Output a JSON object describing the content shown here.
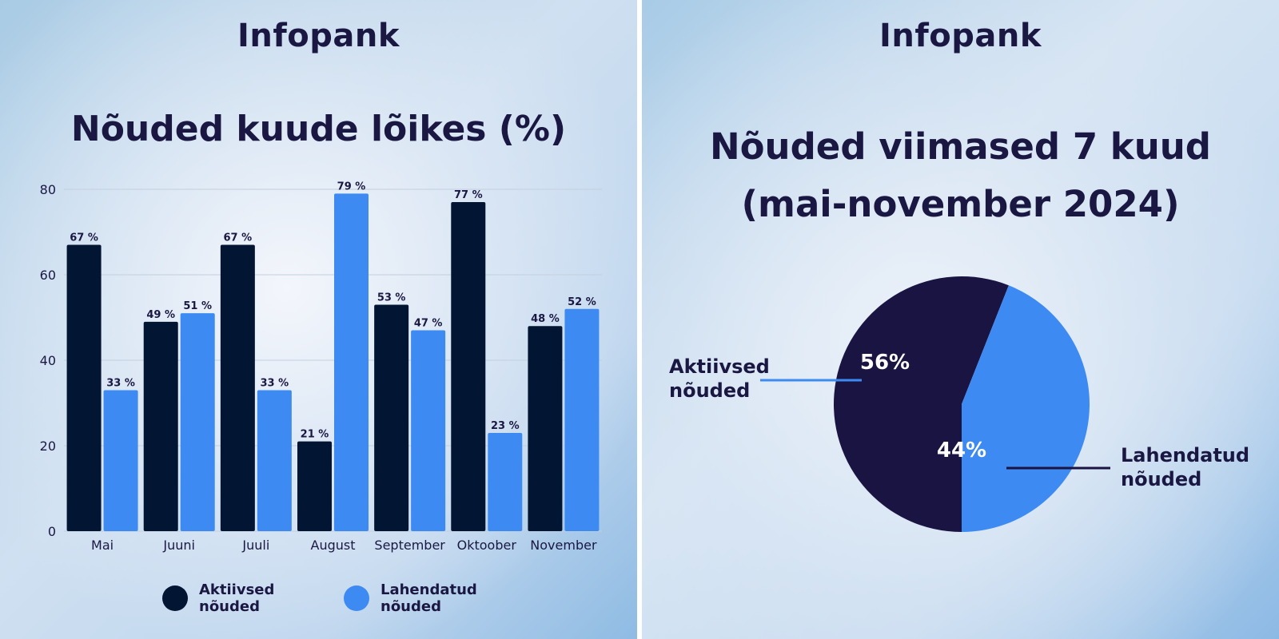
{
  "left": {
    "brand": "Infopank",
    "chart_data": {
      "type": "bar",
      "title": "Nõuded kuude lõikes (%)",
      "xlabel": "",
      "ylabel": "",
      "ylim": [
        0,
        80
      ],
      "yticks": [
        "0",
        "20",
        "40",
        "60",
        "80"
      ],
      "grid": true,
      "legend_position": "bottom",
      "categories": [
        "Mai",
        "Juuni",
        "Juuli",
        "August",
        "September",
        "Oktoober",
        "November"
      ],
      "series": [
        {
          "name": "Aktiivsed nõuded",
          "color": "#021633",
          "values": [
            67,
            49,
            67,
            21,
            53,
            77,
            48
          ],
          "labels": [
            "67 %",
            "49 %",
            "67 %",
            "21 %",
            "53 %",
            "77 %",
            "48 %"
          ]
        },
        {
          "name": "Lahendatud nõuded",
          "color": "#3d8bf2",
          "values": [
            33,
            51,
            33,
            79,
            47,
            23,
            52
          ],
          "labels": [
            "33 %",
            "51 %",
            "33 %",
            "79 %",
            "47 %",
            "23 %",
            "52 %"
          ]
        }
      ]
    },
    "legend": {
      "active_line1": "Aktiivsed",
      "active_line2": "nõuded",
      "resolved_line1": "Lahendatud",
      "resolved_line2": "nõuded"
    }
  },
  "right": {
    "brand": "Infopank",
    "title_line1": "Nõuded viimased 7 kuud",
    "title_line2": "(mai-november 2024)",
    "chart_data": {
      "type": "pie",
      "title": "Nõuded viimased 7 kuud (mai-november 2024)",
      "slices": [
        {
          "name": "Aktiivsed nõuded",
          "value": 56,
          "label": "56%",
          "color": "#1a1442",
          "line1": "Aktiivsed",
          "line2": "nõuded"
        },
        {
          "name": "Lahendatud nõuded",
          "value": 44,
          "label": "44%",
          "color": "#3d8bf2",
          "line1": "Lahendatud",
          "line2": "nõuded"
        }
      ]
    }
  },
  "colors": {
    "text": "#1a1842",
    "grid": "#c3cfdd",
    "divider": "#ffffff"
  }
}
